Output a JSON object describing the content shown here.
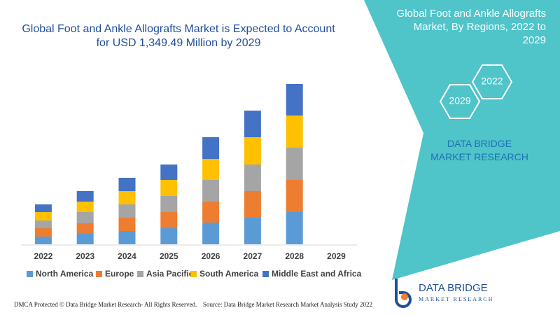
{
  "chart_data": {
    "type": "bar",
    "stacked": true,
    "title": "Global Foot and Ankle Allografts Market is Expected to Account for USD 1,349.49 Million by 2029",
    "categories": [
      "2022",
      "2023",
      "2024",
      "2025",
      "2026",
      "2027",
      "2028",
      "2029"
    ],
    "series": [
      {
        "name": "North America",
        "color": "#5b9bd5",
        "values": [
          11,
          15,
          19,
          23,
          31,
          38,
          46,
          null
        ]
      },
      {
        "name": "Europe",
        "color": "#ed7d31",
        "values": [
          12,
          15,
          19,
          23,
          30,
          38,
          46,
          null
        ]
      },
      {
        "name": "Asia Pacific",
        "color": "#a5a5a5",
        "values": [
          11,
          16,
          19,
          23,
          31,
          38,
          46,
          null
        ]
      },
      {
        "name": "South America",
        "color": "#ffc000",
        "values": [
          12,
          15,
          19,
          23,
          30,
          39,
          46,
          null
        ]
      },
      {
        "name": "Middle East and Africa",
        "color": "#4472c4",
        "values": [
          11,
          15,
          19,
          22,
          31,
          38,
          45,
          null
        ]
      }
    ],
    "legend": "bottom"
  },
  "sidebar": {
    "title": "Global Foot and Ankle Allografts Market, By Regions, 2022 to 2029",
    "hex_labels": [
      "2022",
      "2029"
    ],
    "brand": "DATA BRIDGE MARKET RESEARCH"
  },
  "logo": {
    "name": "DATA BRIDGE",
    "tagline": "MARKET RESEARCH"
  },
  "footer": {
    "dmca": "DMCA Protected © Data Bridge Market Research- All Rights Reserved.",
    "source": "Source: Data Bridge Market Research Market Analysis Study 2022"
  }
}
